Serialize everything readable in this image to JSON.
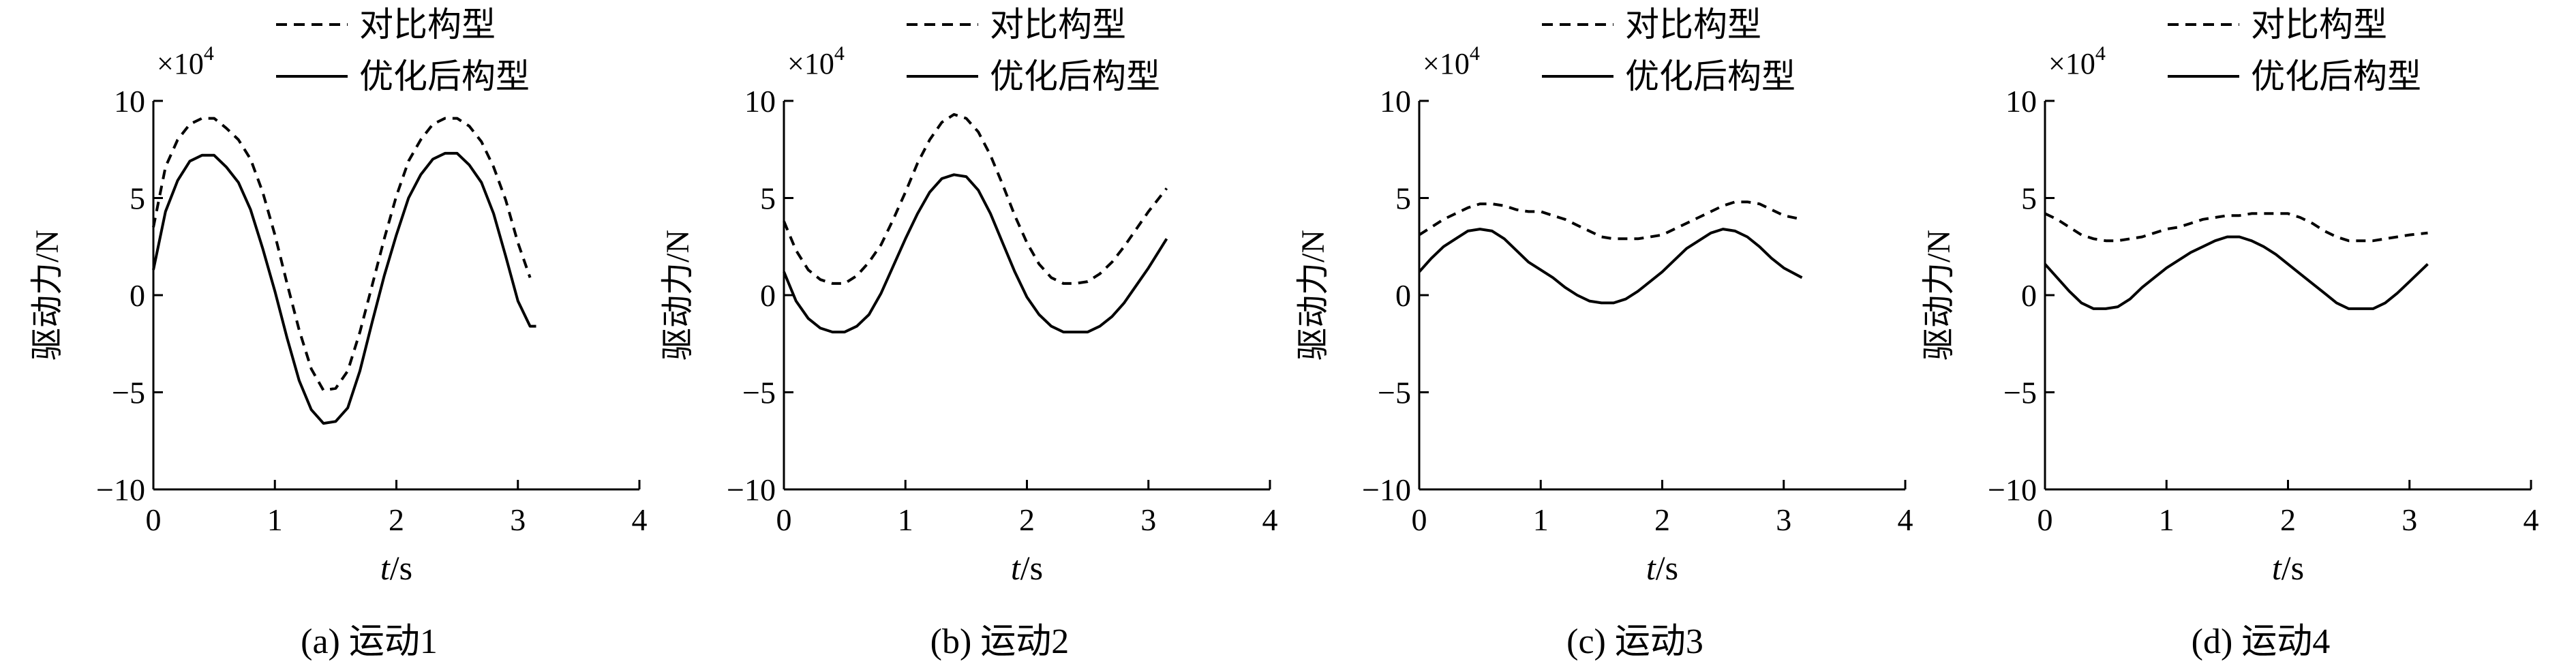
{
  "chart_data": [
    {
      "type": "line",
      "caption": "(a) 运动1",
      "xlabel_italic": "t",
      "xlabel_unit": "/s",
      "ylabel": "驱动力/N",
      "y_multiplier_base": "×10",
      "y_multiplier_exp": "4",
      "xlim": [
        0,
        4
      ],
      "ylim": [
        -10,
        10
      ],
      "x_ticks": [
        "0",
        "1",
        "2",
        "3",
        "4"
      ],
      "y_ticks": [
        "−10",
        "−5",
        "0",
        "5",
        "10"
      ],
      "grid": false,
      "legend_position": "top",
      "series": [
        {
          "name": "对比构型",
          "style": "dashed",
          "x": [
            0,
            0.1,
            0.2,
            0.3,
            0.4,
            0.5,
            0.6,
            0.7,
            0.8,
            0.9,
            1.0,
            1.1,
            1.2,
            1.3,
            1.4,
            1.5,
            1.6,
            1.7,
            1.8,
            1.9,
            2.0,
            2.1,
            2.2,
            2.3,
            2.4,
            2.5,
            2.6,
            2.7,
            2.8,
            2.9,
            3.0,
            3.1
          ],
          "values": [
            3.5,
            6.6,
            8.0,
            8.8,
            9.1,
            9.1,
            8.6,
            8.0,
            7.0,
            5.3,
            3.1,
            0.6,
            -1.8,
            -3.8,
            -4.9,
            -4.8,
            -3.9,
            -1.9,
            0.5,
            2.9,
            5.1,
            6.9,
            8.0,
            8.8,
            9.1,
            9.1,
            8.7,
            7.9,
            6.6,
            4.9,
            2.7,
            0.9
          ]
        },
        {
          "name": "优化后构型",
          "style": "solid",
          "x": [
            0,
            0.1,
            0.2,
            0.3,
            0.4,
            0.5,
            0.6,
            0.7,
            0.8,
            0.9,
            1.0,
            1.1,
            1.2,
            1.3,
            1.4,
            1.5,
            1.6,
            1.7,
            1.8,
            1.9,
            2.0,
            2.1,
            2.2,
            2.3,
            2.4,
            2.5,
            2.6,
            2.7,
            2.8,
            2.9,
            3.0,
            3.1,
            3.15
          ],
          "values": [
            1.3,
            4.3,
            5.9,
            6.9,
            7.2,
            7.2,
            6.6,
            5.8,
            4.4,
            2.4,
            0.2,
            -2.2,
            -4.4,
            -5.9,
            -6.6,
            -6.5,
            -5.8,
            -3.9,
            -1.4,
            1.0,
            3.1,
            5.0,
            6.2,
            7.0,
            7.3,
            7.3,
            6.7,
            5.8,
            4.2,
            2.0,
            -0.3,
            -1.6,
            -1.6
          ]
        }
      ]
    },
    {
      "type": "line",
      "caption": "(b) 运动2",
      "xlabel_italic": "t",
      "xlabel_unit": "/s",
      "ylabel": "驱动力/N",
      "y_multiplier_base": "×10",
      "y_multiplier_exp": "4",
      "xlim": [
        0,
        4
      ],
      "ylim": [
        -10,
        10
      ],
      "x_ticks": [
        "0",
        "1",
        "2",
        "3",
        "4"
      ],
      "y_ticks": [
        "−10",
        "−5",
        "0",
        "5",
        "10"
      ],
      "grid": false,
      "legend_position": "top",
      "series": [
        {
          "name": "对比构型",
          "style": "dashed",
          "x": [
            0,
            0.1,
            0.2,
            0.3,
            0.4,
            0.5,
            0.6,
            0.7,
            0.8,
            0.9,
            1.0,
            1.1,
            1.2,
            1.3,
            1.4,
            1.5,
            1.6,
            1.7,
            1.8,
            1.9,
            2.0,
            2.1,
            2.2,
            2.3,
            2.4,
            2.5,
            2.6,
            2.7,
            2.8,
            2.9,
            3.0,
            3.15
          ],
          "values": [
            3.8,
            2.3,
            1.3,
            0.8,
            0.6,
            0.6,
            1.0,
            1.7,
            2.6,
            3.9,
            5.3,
            6.8,
            8.0,
            8.9,
            9.3,
            9.1,
            8.4,
            7.2,
            5.7,
            4.1,
            2.7,
            1.6,
            0.9,
            0.6,
            0.6,
            0.7,
            1.1,
            1.7,
            2.5,
            3.4,
            4.3,
            5.5
          ]
        },
        {
          "name": "优化后构型",
          "style": "solid",
          "x": [
            0,
            0.1,
            0.2,
            0.3,
            0.4,
            0.5,
            0.6,
            0.7,
            0.8,
            0.9,
            1.0,
            1.1,
            1.2,
            1.3,
            1.4,
            1.5,
            1.6,
            1.7,
            1.8,
            1.9,
            2.0,
            2.1,
            2.2,
            2.3,
            2.4,
            2.5,
            2.6,
            2.7,
            2.8,
            2.9,
            3.0,
            3.15
          ],
          "values": [
            1.2,
            -0.3,
            -1.2,
            -1.7,
            -1.9,
            -1.9,
            -1.6,
            -1.0,
            0.1,
            1.5,
            2.9,
            4.2,
            5.3,
            6.0,
            6.2,
            6.1,
            5.4,
            4.2,
            2.7,
            1.2,
            -0.1,
            -1.0,
            -1.6,
            -1.9,
            -1.9,
            -1.9,
            -1.6,
            -1.1,
            -0.4,
            0.5,
            1.4,
            2.9
          ]
        }
      ]
    },
    {
      "type": "line",
      "caption": "(c) 运动3",
      "xlabel_italic": "t",
      "xlabel_unit": "/s",
      "ylabel": "驱动力/N",
      "y_multiplier_base": "×10",
      "y_multiplier_exp": "4",
      "xlim": [
        0,
        4
      ],
      "ylim": [
        -10,
        10
      ],
      "x_ticks": [
        "0",
        "1",
        "2",
        "3",
        "4"
      ],
      "y_ticks": [
        "−10",
        "−5",
        "0",
        "5",
        "10"
      ],
      "grid": false,
      "legend_position": "top",
      "series": [
        {
          "name": "对比构型",
          "style": "dashed",
          "x": [
            0,
            0.1,
            0.2,
            0.3,
            0.4,
            0.5,
            0.6,
            0.7,
            0.8,
            0.9,
            1.0,
            1.1,
            1.2,
            1.3,
            1.4,
            1.5,
            1.6,
            1.7,
            1.8,
            1.9,
            2.0,
            2.1,
            2.2,
            2.3,
            2.4,
            2.5,
            2.6,
            2.7,
            2.8,
            2.9,
            3.0,
            3.15
          ],
          "values": [
            3.1,
            3.5,
            3.9,
            4.2,
            4.5,
            4.7,
            4.7,
            4.6,
            4.4,
            4.3,
            4.3,
            4.1,
            3.9,
            3.6,
            3.3,
            3.0,
            2.9,
            2.9,
            2.9,
            3.0,
            3.1,
            3.4,
            3.7,
            4.0,
            4.3,
            4.6,
            4.8,
            4.8,
            4.7,
            4.4,
            4.1,
            3.9
          ]
        },
        {
          "name": "优化后构型",
          "style": "solid",
          "x": [
            0,
            0.1,
            0.2,
            0.3,
            0.4,
            0.5,
            0.6,
            0.7,
            0.8,
            0.9,
            1.0,
            1.1,
            1.2,
            1.3,
            1.4,
            1.5,
            1.6,
            1.7,
            1.8,
            1.9,
            2.0,
            2.1,
            2.2,
            2.3,
            2.4,
            2.5,
            2.6,
            2.7,
            2.8,
            2.9,
            3.0,
            3.15
          ],
          "values": [
            1.2,
            1.9,
            2.5,
            2.9,
            3.3,
            3.4,
            3.3,
            2.9,
            2.3,
            1.7,
            1.3,
            0.9,
            0.4,
            0.0,
            -0.3,
            -0.4,
            -0.4,
            -0.2,
            0.2,
            0.7,
            1.2,
            1.8,
            2.4,
            2.8,
            3.2,
            3.4,
            3.3,
            3.0,
            2.5,
            1.9,
            1.4,
            0.9
          ]
        }
      ]
    },
    {
      "type": "line",
      "caption": "(d) 运动4",
      "xlabel_italic": "t",
      "xlabel_unit": "/s",
      "ylabel": "驱动力/N",
      "y_multiplier_base": "×10",
      "y_multiplier_exp": "4",
      "xlim": [
        0,
        4
      ],
      "ylim": [
        -10,
        10
      ],
      "x_ticks": [
        "0",
        "1",
        "2",
        "3",
        "4"
      ],
      "y_ticks": [
        "−10",
        "−5",
        "0",
        "5",
        "10"
      ],
      "grid": false,
      "legend_position": "top",
      "series": [
        {
          "name": "对比构型",
          "style": "dashed",
          "x": [
            0,
            0.1,
            0.2,
            0.3,
            0.4,
            0.5,
            0.6,
            0.7,
            0.8,
            0.9,
            1.0,
            1.1,
            1.2,
            1.3,
            1.4,
            1.5,
            1.6,
            1.7,
            1.8,
            1.9,
            2.0,
            2.1,
            2.2,
            2.3,
            2.4,
            2.5,
            2.6,
            2.7,
            2.8,
            2.9,
            3.0,
            3.15
          ],
          "values": [
            4.2,
            3.9,
            3.5,
            3.1,
            2.9,
            2.8,
            2.8,
            2.9,
            3.0,
            3.2,
            3.4,
            3.5,
            3.7,
            3.9,
            4.0,
            4.1,
            4.1,
            4.2,
            4.2,
            4.2,
            4.2,
            4.0,
            3.7,
            3.3,
            3.0,
            2.8,
            2.8,
            2.8,
            2.9,
            3.0,
            3.1,
            3.2
          ]
        },
        {
          "name": "优化后构型",
          "style": "solid",
          "x": [
            0,
            0.1,
            0.2,
            0.3,
            0.4,
            0.5,
            0.6,
            0.7,
            0.8,
            0.9,
            1.0,
            1.1,
            1.2,
            1.3,
            1.4,
            1.5,
            1.6,
            1.7,
            1.8,
            1.9,
            2.0,
            2.1,
            2.2,
            2.3,
            2.4,
            2.5,
            2.6,
            2.7,
            2.8,
            2.9,
            3.0,
            3.15
          ],
          "values": [
            1.6,
            0.9,
            0.2,
            -0.4,
            -0.7,
            -0.7,
            -0.6,
            -0.2,
            0.4,
            0.9,
            1.4,
            1.8,
            2.2,
            2.5,
            2.8,
            3.0,
            3.0,
            2.8,
            2.5,
            2.1,
            1.6,
            1.1,
            0.6,
            0.1,
            -0.4,
            -0.7,
            -0.7,
            -0.7,
            -0.4,
            0.1,
            0.7,
            1.6
          ]
        }
      ]
    }
  ]
}
